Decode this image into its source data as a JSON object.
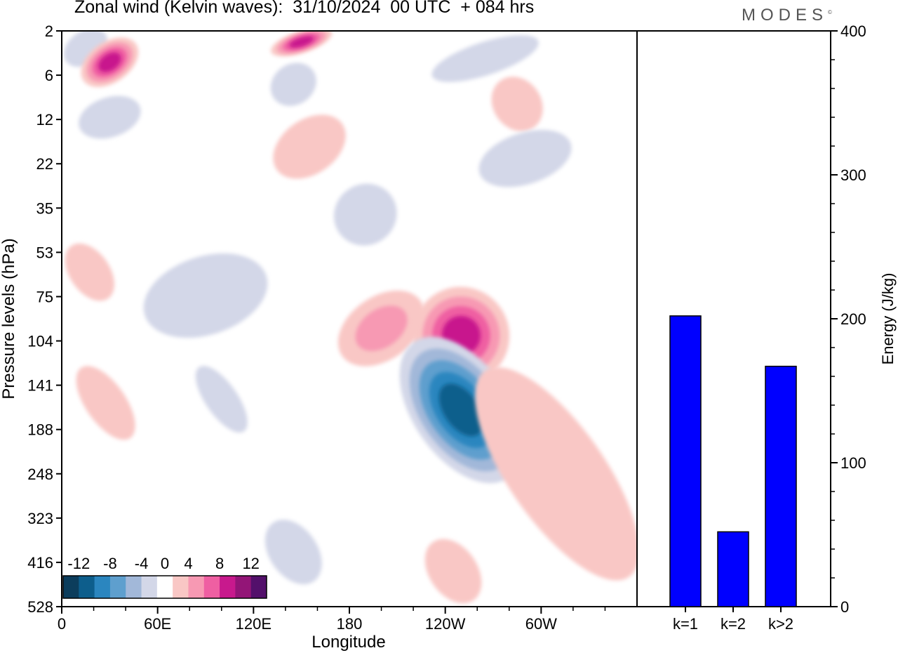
{
  "header": {
    "title": "Zonal wind (Kelvin waves):  31/10/2024  00 UTC  + 084 hrs",
    "logo": "MODES",
    "logo_mark": "©"
  },
  "chart_data": [
    {
      "type": "heatmap",
      "title": "Zonal wind (Kelvin waves):  31/10/2024  00 UTC  + 084 hrs",
      "xlabel": "Longitude",
      "ylabel": "Pressure levels (hPa)",
      "x_ticks": [
        "0",
        "60E",
        "120E",
        "180",
        "120W",
        "60W"
      ],
      "x_tick_degrees": [
        0,
        60,
        120,
        180,
        240,
        300
      ],
      "xlim": [
        0,
        360
      ],
      "y_ticks": [
        2,
        6,
        12,
        22,
        35,
        53,
        75,
        104,
        141,
        188,
        248,
        323,
        416,
        528
      ],
      "colorbar": {
        "labels": [
          "-12",
          "-8",
          "-4",
          "0",
          "4",
          "8",
          "12"
        ],
        "levels": [
          -14,
          -12,
          -10,
          -8,
          -6,
          -4,
          -2,
          2,
          4,
          6,
          8,
          10,
          12,
          14
        ],
        "colors": [
          "#0c3d5c",
          "#0d5e8c",
          "#2b86bf",
          "#5e9fce",
          "#a2b8d9",
          "#d3d7e8",
          "#ffffff",
          "#f9c7c5",
          "#f799b3",
          "#ef5fa2",
          "#c8198d",
          "#931577",
          "#53106b"
        ],
        "placement": "bottom-left"
      },
      "features": [
        {
          "sign": "negative",
          "lon_range": [
            0,
            30
          ],
          "p_range": [
            2,
            5
          ]
        },
        {
          "sign": "positive",
          "lon_range": [
            10,
            50
          ],
          "p_range": [
            3,
            7
          ],
          "peak": 10
        },
        {
          "sign": "positive",
          "lon_range": [
            130,
            170
          ],
          "p_range": [
            2,
            4
          ],
          "peak": 10
        },
        {
          "sign": "negative",
          "lon_range": [
            230,
            300
          ],
          "p_range": [
            3,
            6
          ]
        },
        {
          "sign": "negative",
          "lon_range": [
            130,
            160
          ],
          "p_range": [
            5,
            10
          ]
        },
        {
          "sign": "negative",
          "lon_range": [
            10,
            50
          ],
          "p_range": [
            9,
            16
          ]
        },
        {
          "sign": "positive",
          "lon_range": [
            130,
            180
          ],
          "p_range": [
            12,
            25
          ]
        },
        {
          "sign": "positive",
          "lon_range": [
            270,
            300
          ],
          "p_range": [
            6,
            15
          ]
        },
        {
          "sign": "negative",
          "lon_range": [
            260,
            320
          ],
          "p_range": [
            15,
            28
          ]
        },
        {
          "sign": "negative",
          "lon_range": [
            170,
            210
          ],
          "p_range": [
            28,
            50
          ]
        },
        {
          "sign": "positive",
          "lon_range": [
            5,
            30
          ],
          "p_range": [
            48,
            80
          ]
        },
        {
          "sign": "negative",
          "lon_range": [
            50,
            130
          ],
          "p_range": [
            55,
            100
          ]
        },
        {
          "sign": "positive",
          "lon_range": [
            170,
            230
          ],
          "p_range": [
            75,
            120
          ],
          "peak": 6
        },
        {
          "sign": "positive",
          "lon_range": [
            220,
            280
          ],
          "p_range": [
            70,
            140
          ],
          "peak": 10
        },
        {
          "sign": "negative",
          "lon_range": [
            220,
            280
          ],
          "p_range": [
            95,
            280
          ],
          "peak": -12
        },
        {
          "sign": "positive",
          "lon_range": [
            280,
            340
          ],
          "p_range": [
            110,
            510
          ]
        },
        {
          "sign": "negative",
          "lon_range": [
            90,
            110
          ],
          "p_range": [
            120,
            200
          ]
        },
        {
          "sign": "negative",
          "lon_range": [
            130,
            160
          ],
          "p_range": [
            320,
            480
          ]
        },
        {
          "sign": "positive",
          "lon_range": [
            230,
            260
          ],
          "p_range": [
            360,
            528
          ]
        },
        {
          "sign": "positive",
          "lon_range": [
            15,
            40
          ],
          "p_range": [
            120,
            210
          ]
        }
      ]
    },
    {
      "type": "bar",
      "categories": [
        "k=1",
        "k=2",
        "k>2"
      ],
      "values": [
        202,
        52,
        167
      ],
      "ylabel": "Energy (J/kg)",
      "ylim": [
        0,
        400
      ],
      "y_ticks": [
        0,
        100,
        200,
        300,
        400
      ],
      "bar_color": "#0000ff"
    }
  ]
}
